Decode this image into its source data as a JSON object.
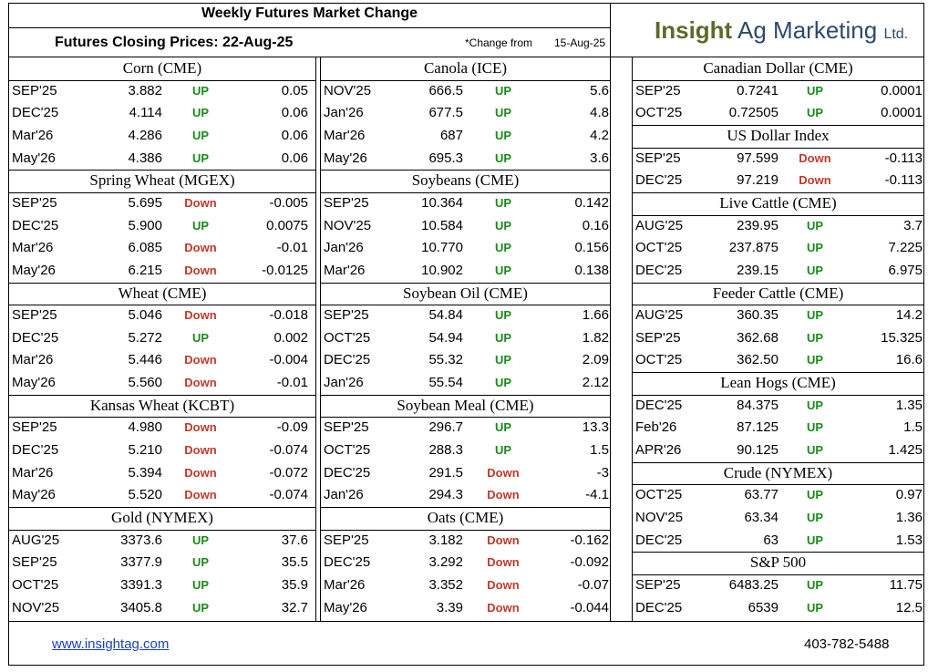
{
  "header": {
    "title": "Weekly Futures Market Change",
    "subtitle": "Futures Closing Prices:  22-Aug-25",
    "change_label": "*Change from",
    "change_date": "15-Aug-25",
    "logo_part1": "Insight",
    "logo_part2": "Ag Marketing",
    "logo_part3": "Ltd."
  },
  "colors": {
    "up": "#1a8a1a",
    "down": "#c0392b",
    "logo_green": "#5b6b2a",
    "logo_blue": "#2e4a6b",
    "link": "#1a3fc4"
  },
  "columns": [
    [
      {
        "title": "Corn (CME)",
        "rows": [
          [
            "SEP'25",
            "3.882",
            "UP",
            "0.05"
          ],
          [
            "DEC'25",
            "4.114",
            "UP",
            "0.06"
          ],
          [
            "Mar'26",
            "4.286",
            "UP",
            "0.06"
          ],
          [
            "May'26",
            "4.386",
            "UP",
            "0.06"
          ]
        ]
      },
      {
        "title": "Spring Wheat (MGEX)",
        "rows": [
          [
            "SEP'25",
            "5.695",
            "Down",
            "-0.005"
          ],
          [
            "DEC'25",
            "5.900",
            "UP",
            "0.0075"
          ],
          [
            "Mar'26",
            "6.085",
            "Down",
            "-0.01"
          ],
          [
            "May'26",
            "6.215",
            "Down",
            "-0.0125"
          ]
        ]
      },
      {
        "title": "Wheat (CME)",
        "rows": [
          [
            "SEP'25",
            "5.046",
            "Down",
            "-0.018"
          ],
          [
            "DEC'25",
            "5.272",
            "UP",
            "0.002"
          ],
          [
            "Mar'26",
            "5.446",
            "Down",
            "-0.004"
          ],
          [
            "May'26",
            "5.560",
            "Down",
            "-0.01"
          ]
        ]
      },
      {
        "title": "Kansas Wheat (KCBT)",
        "rows": [
          [
            "SEP'25",
            "4.980",
            "Down",
            "-0.09"
          ],
          [
            "DEC'25",
            "5.210",
            "Down",
            "-0.074"
          ],
          [
            "Mar'26",
            "5.394",
            "Down",
            "-0.072"
          ],
          [
            "May'26",
            "5.520",
            "Down",
            "-0.074"
          ]
        ]
      },
      {
        "title": "Gold (NYMEX)",
        "rows": [
          [
            "AUG'25",
            "3373.6",
            "UP",
            "37.6"
          ],
          [
            "SEP'25",
            "3377.9",
            "UP",
            "35.5"
          ],
          [
            "OCT'25",
            "3391.3",
            "UP",
            "35.9"
          ],
          [
            "NOV'25",
            "3405.8",
            "UP",
            "32.7"
          ]
        ]
      }
    ],
    [
      {
        "title": "Canola (ICE)",
        "rows": [
          [
            "NOV'25",
            "666.5",
            "UP",
            "5.6"
          ],
          [
            "Jan'26",
            "677.5",
            "UP",
            "4.8"
          ],
          [
            "Mar'26",
            "687",
            "UP",
            "4.2"
          ],
          [
            "May'26",
            "695.3",
            "UP",
            "3.6"
          ]
        ]
      },
      {
        "title": "Soybeans (CME)",
        "rows": [
          [
            "SEP'25",
            "10.364",
            "UP",
            "0.142"
          ],
          [
            "NOV'25",
            "10.584",
            "UP",
            "0.16"
          ],
          [
            "Jan'26",
            "10.770",
            "UP",
            "0.156"
          ],
          [
            "Mar'26",
            "10.902",
            "UP",
            "0.138"
          ]
        ]
      },
      {
        "title": "Soybean Oil (CME)",
        "rows": [
          [
            "SEP'25",
            "54.84",
            "UP",
            "1.66"
          ],
          [
            "OCT'25",
            "54.94",
            "UP",
            "1.82"
          ],
          [
            "DEC'25",
            "55.32",
            "UP",
            "2.09"
          ],
          [
            "Jan'26",
            "55.54",
            "UP",
            "2.12"
          ]
        ]
      },
      {
        "title": "Soybean Meal (CME)",
        "rows": [
          [
            "SEP'25",
            "296.7",
            "UP",
            "13.3"
          ],
          [
            "OCT'25",
            "288.3",
            "UP",
            "1.5"
          ],
          [
            "DEC'25",
            "291.5",
            "Down",
            "-3"
          ],
          [
            "Jan'26",
            "294.3",
            "Down",
            "-4.1"
          ]
        ]
      },
      {
        "title": "Oats (CME)",
        "rows": [
          [
            "SEP'25",
            "3.182",
            "Down",
            "-0.162"
          ],
          [
            "DEC'25",
            "3.292",
            "Down",
            "-0.092"
          ],
          [
            "Mar'26",
            "3.352",
            "Down",
            "-0.07"
          ],
          [
            "May'26",
            "3.39",
            "Down",
            "-0.044"
          ]
        ]
      }
    ],
    [
      {
        "title": "Canadian Dollar (CME)",
        "rows": [
          [
            "SEP'25",
            "0.7241",
            "UP",
            "0.0001"
          ],
          [
            "OCT'25",
            "0.72505",
            "UP",
            "0.0001"
          ]
        ]
      },
      {
        "title": "US Dollar Index",
        "rows": [
          [
            "SEP'25",
            "97.599",
            "Down",
            "-0.113"
          ],
          [
            "DEC'25",
            "97.219",
            "Down",
            "-0.113"
          ]
        ]
      },
      {
        "title": "Live Cattle (CME)",
        "rows": [
          [
            "AUG'25",
            "239.95",
            "UP",
            "3.7"
          ],
          [
            "OCT'25",
            "237.875",
            "UP",
            "7.225"
          ],
          [
            "DEC'25",
            "239.15",
            "UP",
            "6.975"
          ]
        ]
      },
      {
        "title": "Feeder Cattle (CME)",
        "rows": [
          [
            "AUG'25",
            "360.35",
            "UP",
            "14.2"
          ],
          [
            "SEP'25",
            "362.68",
            "UP",
            "15.325"
          ],
          [
            "OCT'25",
            "362.50",
            "UP",
            "16.6"
          ]
        ]
      },
      {
        "title": "Lean Hogs (CME)",
        "rows": [
          [
            "DEC'25",
            "84.375",
            "UP",
            "1.35"
          ],
          [
            "Feb'26",
            "87.125",
            "UP",
            "1.5"
          ],
          [
            "APR'26",
            "90.125",
            "UP",
            "1.425"
          ]
        ]
      },
      {
        "title": "Crude (NYMEX)",
        "rows": [
          [
            "OCT'25",
            "63.77",
            "UP",
            "0.97"
          ],
          [
            "NOV'25",
            "63.34",
            "UP",
            "1.36"
          ],
          [
            "DEC'25",
            "63",
            "UP",
            "1.53"
          ]
        ]
      },
      {
        "title": "S&P 500",
        "rows": [
          [
            "SEP'25",
            "6483.25",
            "UP",
            "11.75"
          ],
          [
            "DEC'25",
            "6539",
            "UP",
            "12.5"
          ]
        ]
      }
    ]
  ],
  "footer": {
    "website": "www.insightag.com",
    "phone": "403-782-5488"
  }
}
